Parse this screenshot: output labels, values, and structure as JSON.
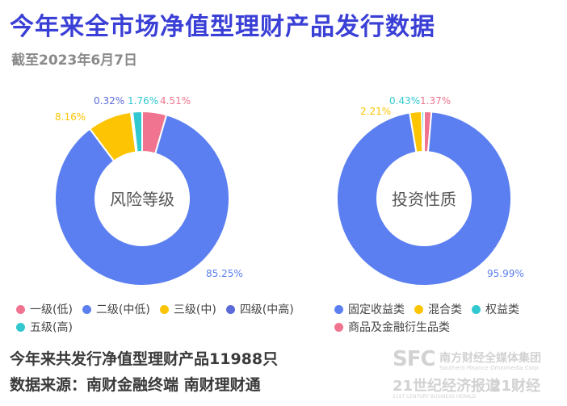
{
  "title": "今年来全市场净值型理财产品发行数据",
  "subtitle": "截至2023年6月7日",
  "chart_data": [
    {
      "type": "pie",
      "center_label": "风险等级",
      "labels": [
        "一级(低)",
        "二级(中低)",
        "三级(中)",
        "四级(中高)",
        "五级(高)"
      ],
      "values": [
        4.51,
        85.25,
        8.16,
        0.32,
        1.76
      ],
      "value_labels": [
        "4.51%",
        "85.25%",
        "8.16%",
        "0.32%",
        "1.76%"
      ],
      "colors": [
        "#f0748f",
        "#5b7ff0",
        "#fcc402",
        "#5b6ad8",
        "#32c8d0"
      ],
      "legend_position": "bottom"
    },
    {
      "type": "pie",
      "center_label": "投资性质",
      "labels": [
        "商品及金融衍生品类",
        "固定收益类",
        "混合类",
        "权益类"
      ],
      "values": [
        1.37,
        95.99,
        2.21,
        0.43
      ],
      "value_labels": [
        "1.37%",
        "95.99%",
        "2.21%",
        "0.43%"
      ],
      "colors": [
        "#f0748f",
        "#5b7ff0",
        "#fcc402",
        "#32c8d0"
      ],
      "legend_position": "bottom"
    }
  ],
  "legend_left": {
    "row1": [
      {
        "label": "一级(低)",
        "color": "#f0748f"
      },
      {
        "label": "二级(中低)",
        "color": "#5b7ff0"
      },
      {
        "label": "三级(中)",
        "color": "#fcc402"
      },
      {
        "label": "四级(中高)",
        "color": "#5b6ad8"
      }
    ],
    "row2": [
      {
        "label": "五级(高)",
        "color": "#32c8d0"
      }
    ]
  },
  "legend_right": {
    "row1": [
      {
        "label": "固定收益类",
        "color": "#5b7ff0"
      },
      {
        "label": "混合类",
        "color": "#fcc402"
      },
      {
        "label": "权益类",
        "color": "#32c8d0"
      }
    ],
    "row2": [
      {
        "label": "商品及金融衍生品类",
        "color": "#f0748f"
      }
    ]
  },
  "footer": {
    "total_text": "今年来共发行净值型理财产品11988只",
    "source_text": "数据来源：南财金融终端 南财理财通"
  },
  "watermark": {
    "logo": "SFC",
    "group_name": "南方财经全媒体集团",
    "group_en": "Southern Finance Omnimedia Corp.",
    "paper_name": "21世纪经济报道",
    "brand": "21财经",
    "paper_en": "21ST CENTURY BUSINESS HERALD"
  }
}
